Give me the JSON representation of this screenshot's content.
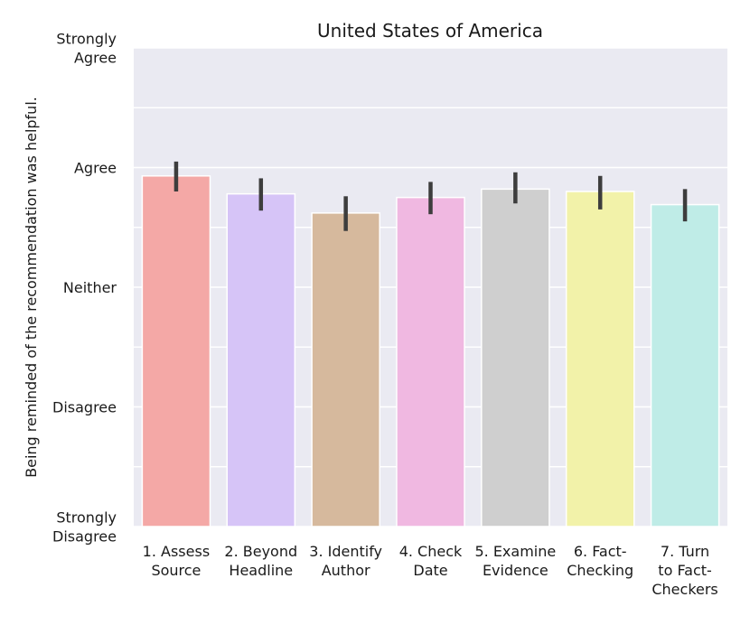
{
  "chart_data": {
    "type": "bar",
    "title": "United States of America",
    "ylabel": "Being reminded of the recommendation was helpful.",
    "xlabel": "",
    "ylim": [
      1,
      5
    ],
    "yticks": [
      {
        "value": 1,
        "lines": [
          "Strongly",
          "Disagree"
        ]
      },
      {
        "value": 2,
        "lines": [
          "Disagree"
        ]
      },
      {
        "value": 3,
        "lines": [
          "Neither"
        ]
      },
      {
        "value": 4,
        "lines": [
          "Agree"
        ]
      },
      {
        "value": 5,
        "lines": [
          "Strongly",
          "Agree"
        ]
      }
    ],
    "minor_grid": [
      1.5,
      2.5,
      3.5,
      4.5
    ],
    "categories": [
      [
        "1. Assess",
        "Source"
      ],
      [
        "2. Beyond",
        "Headline"
      ],
      [
        "3. Identify",
        "Author"
      ],
      [
        "4. Check",
        "Date"
      ],
      [
        "5. Examine",
        "Evidence"
      ],
      [
        "6. Fact-",
        "Checking"
      ],
      [
        "7. Turn",
        "to Fact-",
        "Checkers"
      ]
    ],
    "values": [
      3.93,
      3.78,
      3.62,
      3.75,
      3.82,
      3.8,
      3.69
    ],
    "error_low": [
      3.8,
      3.64,
      3.47,
      3.61,
      3.7,
      3.65,
      3.55
    ],
    "error_high": [
      4.05,
      3.91,
      3.76,
      3.88,
      3.96,
      3.93,
      3.82
    ],
    "colors": [
      "#f4a8a6",
      "#d6c4f7",
      "#d6b99d",
      "#f0b8e1",
      "#cfcfcf",
      "#f2f2a9",
      "#bfece7"
    ],
    "grid": true
  }
}
